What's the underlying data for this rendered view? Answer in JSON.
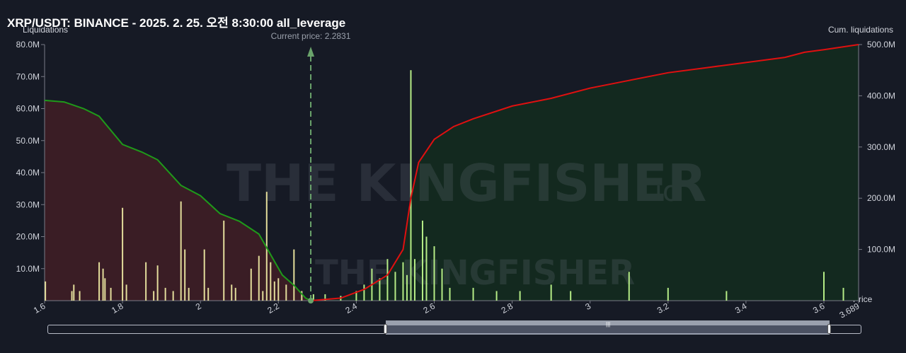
{
  "header": {
    "title": "XRP/USDT: BINANCE - 2025. 2. 25. 오전 8:30:00 all_leverage"
  },
  "axes": {
    "left_title": "Liquidations",
    "right_title": "Cum. liquidations",
    "x_title": "Price",
    "left_ticks": [
      "80.0M",
      "70.0M",
      "60.0M",
      "50.0M",
      "40.0M",
      "30.0M",
      "20.0M",
      "10.0M"
    ],
    "right_ticks": [
      "500.0M",
      "400.0M",
      "300.0M",
      "200.0M",
      "100.0M"
    ],
    "x_ticks": [
      "1.6",
      "1.8",
      "2",
      "2.2",
      "2.4",
      "2.6",
      "2.8",
      "3",
      "3.2",
      "3.4",
      "3.6",
      "3.689"
    ]
  },
  "watermark": {
    "brand": "THE KINGFISHER",
    "suffix": ".io"
  },
  "chart_data": {
    "type": "bar",
    "title": "XRP/USDT: BINANCE - 2025. 2. 25. 오전 8:30:00 all_leverage",
    "xlabel": "Price",
    "ylabel": "Liquidations",
    "y2label": "Cum. liquidations",
    "xlim": [
      1.6,
      3.689
    ],
    "ylim": [
      0,
      80000000
    ],
    "y2lim": [
      0,
      500000000
    ],
    "current_price": 2.2831,
    "current_price_label": "Current price: 2.2831",
    "colors": {
      "short_bars": "#b5ec86",
      "long_bars": "#e3dd9b",
      "long_cum": "#1f9a1a",
      "short_cum": "#e01010",
      "long_fill": "#3a1d25",
      "short_fill": "#13291f"
    },
    "long_liquidations": [
      {
        "price": 1.602,
        "value": 6000000
      },
      {
        "price": 1.67,
        "value": 3000000
      },
      {
        "price": 1.675,
        "value": 5000000
      },
      {
        "price": 1.69,
        "value": 3000000
      },
      {
        "price": 1.74,
        "value": 12000000
      },
      {
        "price": 1.75,
        "value": 10000000
      },
      {
        "price": 1.755,
        "value": 7000000
      },
      {
        "price": 1.77,
        "value": 4000000
      },
      {
        "price": 1.8,
        "value": 29000000
      },
      {
        "price": 1.81,
        "value": 5000000
      },
      {
        "price": 1.86,
        "value": 12000000
      },
      {
        "price": 1.88,
        "value": 3000000
      },
      {
        "price": 1.89,
        "value": 11000000
      },
      {
        "price": 1.91,
        "value": 4000000
      },
      {
        "price": 1.93,
        "value": 3000000
      },
      {
        "price": 1.95,
        "value": 31000000
      },
      {
        "price": 1.96,
        "value": 16000000
      },
      {
        "price": 1.97,
        "value": 4000000
      },
      {
        "price": 2.01,
        "value": 16000000
      },
      {
        "price": 2.02,
        "value": 4000000
      },
      {
        "price": 2.06,
        "value": 25000000
      },
      {
        "price": 2.08,
        "value": 5000000
      },
      {
        "price": 2.09,
        "value": 4000000
      },
      {
        "price": 2.13,
        "value": 10000000
      },
      {
        "price": 2.15,
        "value": 14000000
      },
      {
        "price": 2.16,
        "value": 3000000
      },
      {
        "price": 2.17,
        "value": 34000000
      },
      {
        "price": 2.18,
        "value": 12000000
      },
      {
        "price": 2.19,
        "value": 6000000
      },
      {
        "price": 2.2,
        "value": 7000000
      },
      {
        "price": 2.22,
        "value": 5000000
      },
      {
        "price": 2.24,
        "value": 16000000
      },
      {
        "price": 2.26,
        "value": 3000000
      }
    ],
    "short_liquidations": [
      {
        "price": 2.29,
        "value": 2000000
      },
      {
        "price": 2.32,
        "value": 2000000
      },
      {
        "price": 2.36,
        "value": 1500000
      },
      {
        "price": 2.4,
        "value": 3000000
      },
      {
        "price": 2.42,
        "value": 5000000
      },
      {
        "price": 2.44,
        "value": 10000000
      },
      {
        "price": 2.46,
        "value": 7000000
      },
      {
        "price": 2.48,
        "value": 13000000
      },
      {
        "price": 2.5,
        "value": 9000000
      },
      {
        "price": 2.52,
        "value": 12000000
      },
      {
        "price": 2.53,
        "value": 8000000
      },
      {
        "price": 2.54,
        "value": 72000000
      },
      {
        "price": 2.55,
        "value": 13000000
      },
      {
        "price": 2.57,
        "value": 25000000
      },
      {
        "price": 2.58,
        "value": 20000000
      },
      {
        "price": 2.6,
        "value": 17000000
      },
      {
        "price": 2.62,
        "value": 10000000
      },
      {
        "price": 2.64,
        "value": 4000000
      },
      {
        "price": 2.7,
        "value": 4000000
      },
      {
        "price": 2.76,
        "value": 3000000
      },
      {
        "price": 2.82,
        "value": 3000000
      },
      {
        "price": 2.9,
        "value": 5000000
      },
      {
        "price": 2.95,
        "value": 3000000
      },
      {
        "price": 3.1,
        "value": 9000000
      },
      {
        "price": 3.2,
        "value": 4000000
      },
      {
        "price": 3.35,
        "value": 3000000
      },
      {
        "price": 3.6,
        "value": 9000000
      },
      {
        "price": 3.65,
        "value": 4000000
      }
    ],
    "long_cumulative": [
      {
        "price": 1.6,
        "value": 391000000
      },
      {
        "price": 1.65,
        "value": 388000000
      },
      {
        "price": 1.7,
        "value": 375000000
      },
      {
        "price": 1.74,
        "value": 360000000
      },
      {
        "price": 1.8,
        "value": 305000000
      },
      {
        "price": 1.85,
        "value": 290000000
      },
      {
        "price": 1.89,
        "value": 275000000
      },
      {
        "price": 1.95,
        "value": 225000000
      },
      {
        "price": 2.0,
        "value": 205000000
      },
      {
        "price": 2.05,
        "value": 170000000
      },
      {
        "price": 2.1,
        "value": 155000000
      },
      {
        "price": 2.15,
        "value": 130000000
      },
      {
        "price": 2.18,
        "value": 90000000
      },
      {
        "price": 2.21,
        "value": 50000000
      },
      {
        "price": 2.24,
        "value": 30000000
      },
      {
        "price": 2.27,
        "value": 5000000
      },
      {
        "price": 2.283,
        "value": 0
      }
    ],
    "short_cumulative": [
      {
        "price": 2.283,
        "value": 0
      },
      {
        "price": 2.36,
        "value": 5000000
      },
      {
        "price": 2.42,
        "value": 22000000
      },
      {
        "price": 2.48,
        "value": 50000000
      },
      {
        "price": 2.52,
        "value": 100000000
      },
      {
        "price": 2.54,
        "value": 200000000
      },
      {
        "price": 2.56,
        "value": 270000000
      },
      {
        "price": 2.6,
        "value": 315000000
      },
      {
        "price": 2.65,
        "value": 340000000
      },
      {
        "price": 2.7,
        "value": 355000000
      },
      {
        "price": 2.8,
        "value": 380000000
      },
      {
        "price": 2.9,
        "value": 395000000
      },
      {
        "price": 3.0,
        "value": 415000000
      },
      {
        "price": 3.1,
        "value": 430000000
      },
      {
        "price": 3.2,
        "value": 445000000
      },
      {
        "price": 3.3,
        "value": 455000000
      },
      {
        "price": 3.4,
        "value": 465000000
      },
      {
        "price": 3.5,
        "value": 475000000
      },
      {
        "price": 3.55,
        "value": 485000000
      },
      {
        "price": 3.6,
        "value": 490000000
      },
      {
        "price": 3.689,
        "value": 500000000
      }
    ]
  }
}
